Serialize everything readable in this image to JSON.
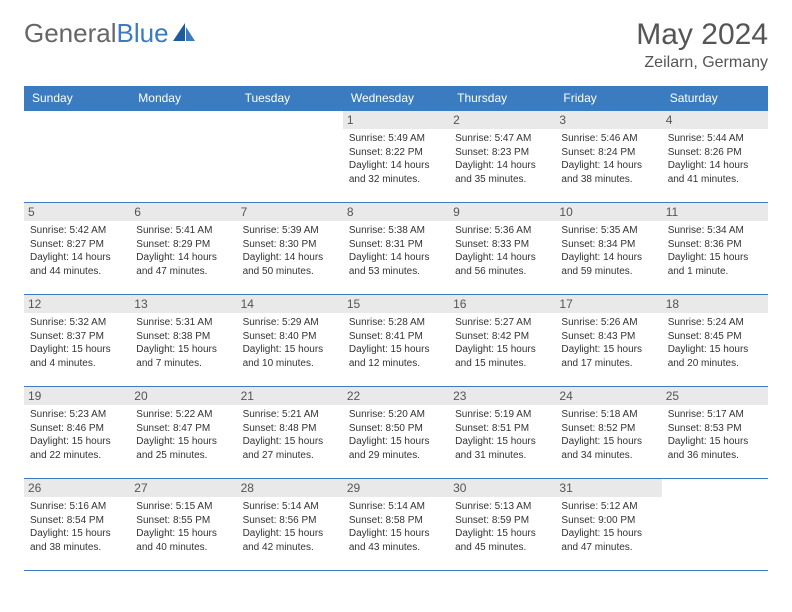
{
  "logo": {
    "text_gray": "General",
    "text_blue": "Blue"
  },
  "title": "May 2024",
  "location": "Zeilarn, Germany",
  "colors": {
    "header_bg": "#3b7bbf",
    "header_fg": "#ffffff",
    "daynum_bg": "#e9e9e9",
    "border": "#3b7bbf",
    "text": "#333333",
    "title_color": "#555555"
  },
  "day_headers": [
    "Sunday",
    "Monday",
    "Tuesday",
    "Wednesday",
    "Thursday",
    "Friday",
    "Saturday"
  ],
  "weeks": [
    [
      {
        "n": "",
        "sr": "",
        "ss": "",
        "dl": ""
      },
      {
        "n": "",
        "sr": "",
        "ss": "",
        "dl": ""
      },
      {
        "n": "",
        "sr": "",
        "ss": "",
        "dl": ""
      },
      {
        "n": "1",
        "sr": "5:49 AM",
        "ss": "8:22 PM",
        "dl": "14 hours and 32 minutes."
      },
      {
        "n": "2",
        "sr": "5:47 AM",
        "ss": "8:23 PM",
        "dl": "14 hours and 35 minutes."
      },
      {
        "n": "3",
        "sr": "5:46 AM",
        "ss": "8:24 PM",
        "dl": "14 hours and 38 minutes."
      },
      {
        "n": "4",
        "sr": "5:44 AM",
        "ss": "8:26 PM",
        "dl": "14 hours and 41 minutes."
      }
    ],
    [
      {
        "n": "5",
        "sr": "5:42 AM",
        "ss": "8:27 PM",
        "dl": "14 hours and 44 minutes."
      },
      {
        "n": "6",
        "sr": "5:41 AM",
        "ss": "8:29 PM",
        "dl": "14 hours and 47 minutes."
      },
      {
        "n": "7",
        "sr": "5:39 AM",
        "ss": "8:30 PM",
        "dl": "14 hours and 50 minutes."
      },
      {
        "n": "8",
        "sr": "5:38 AM",
        "ss": "8:31 PM",
        "dl": "14 hours and 53 minutes."
      },
      {
        "n": "9",
        "sr": "5:36 AM",
        "ss": "8:33 PM",
        "dl": "14 hours and 56 minutes."
      },
      {
        "n": "10",
        "sr": "5:35 AM",
        "ss": "8:34 PM",
        "dl": "14 hours and 59 minutes."
      },
      {
        "n": "11",
        "sr": "5:34 AM",
        "ss": "8:36 PM",
        "dl": "15 hours and 1 minute."
      }
    ],
    [
      {
        "n": "12",
        "sr": "5:32 AM",
        "ss": "8:37 PM",
        "dl": "15 hours and 4 minutes."
      },
      {
        "n": "13",
        "sr": "5:31 AM",
        "ss": "8:38 PM",
        "dl": "15 hours and 7 minutes."
      },
      {
        "n": "14",
        "sr": "5:29 AM",
        "ss": "8:40 PM",
        "dl": "15 hours and 10 minutes."
      },
      {
        "n": "15",
        "sr": "5:28 AM",
        "ss": "8:41 PM",
        "dl": "15 hours and 12 minutes."
      },
      {
        "n": "16",
        "sr": "5:27 AM",
        "ss": "8:42 PM",
        "dl": "15 hours and 15 minutes."
      },
      {
        "n": "17",
        "sr": "5:26 AM",
        "ss": "8:43 PM",
        "dl": "15 hours and 17 minutes."
      },
      {
        "n": "18",
        "sr": "5:24 AM",
        "ss": "8:45 PM",
        "dl": "15 hours and 20 minutes."
      }
    ],
    [
      {
        "n": "19",
        "sr": "5:23 AM",
        "ss": "8:46 PM",
        "dl": "15 hours and 22 minutes."
      },
      {
        "n": "20",
        "sr": "5:22 AM",
        "ss": "8:47 PM",
        "dl": "15 hours and 25 minutes."
      },
      {
        "n": "21",
        "sr": "5:21 AM",
        "ss": "8:48 PM",
        "dl": "15 hours and 27 minutes."
      },
      {
        "n": "22",
        "sr": "5:20 AM",
        "ss": "8:50 PM",
        "dl": "15 hours and 29 minutes."
      },
      {
        "n": "23",
        "sr": "5:19 AM",
        "ss": "8:51 PM",
        "dl": "15 hours and 31 minutes."
      },
      {
        "n": "24",
        "sr": "5:18 AM",
        "ss": "8:52 PM",
        "dl": "15 hours and 34 minutes."
      },
      {
        "n": "25",
        "sr": "5:17 AM",
        "ss": "8:53 PM",
        "dl": "15 hours and 36 minutes."
      }
    ],
    [
      {
        "n": "26",
        "sr": "5:16 AM",
        "ss": "8:54 PM",
        "dl": "15 hours and 38 minutes."
      },
      {
        "n": "27",
        "sr": "5:15 AM",
        "ss": "8:55 PM",
        "dl": "15 hours and 40 minutes."
      },
      {
        "n": "28",
        "sr": "5:14 AM",
        "ss": "8:56 PM",
        "dl": "15 hours and 42 minutes."
      },
      {
        "n": "29",
        "sr": "5:14 AM",
        "ss": "8:58 PM",
        "dl": "15 hours and 43 minutes."
      },
      {
        "n": "30",
        "sr": "5:13 AM",
        "ss": "8:59 PM",
        "dl": "15 hours and 45 minutes."
      },
      {
        "n": "31",
        "sr": "5:12 AM",
        "ss": "9:00 PM",
        "dl": "15 hours and 47 minutes."
      },
      {
        "n": "",
        "sr": "",
        "ss": "",
        "dl": ""
      }
    ]
  ],
  "labels": {
    "sunrise": "Sunrise: ",
    "sunset": "Sunset: ",
    "daylight": "Daylight: "
  }
}
